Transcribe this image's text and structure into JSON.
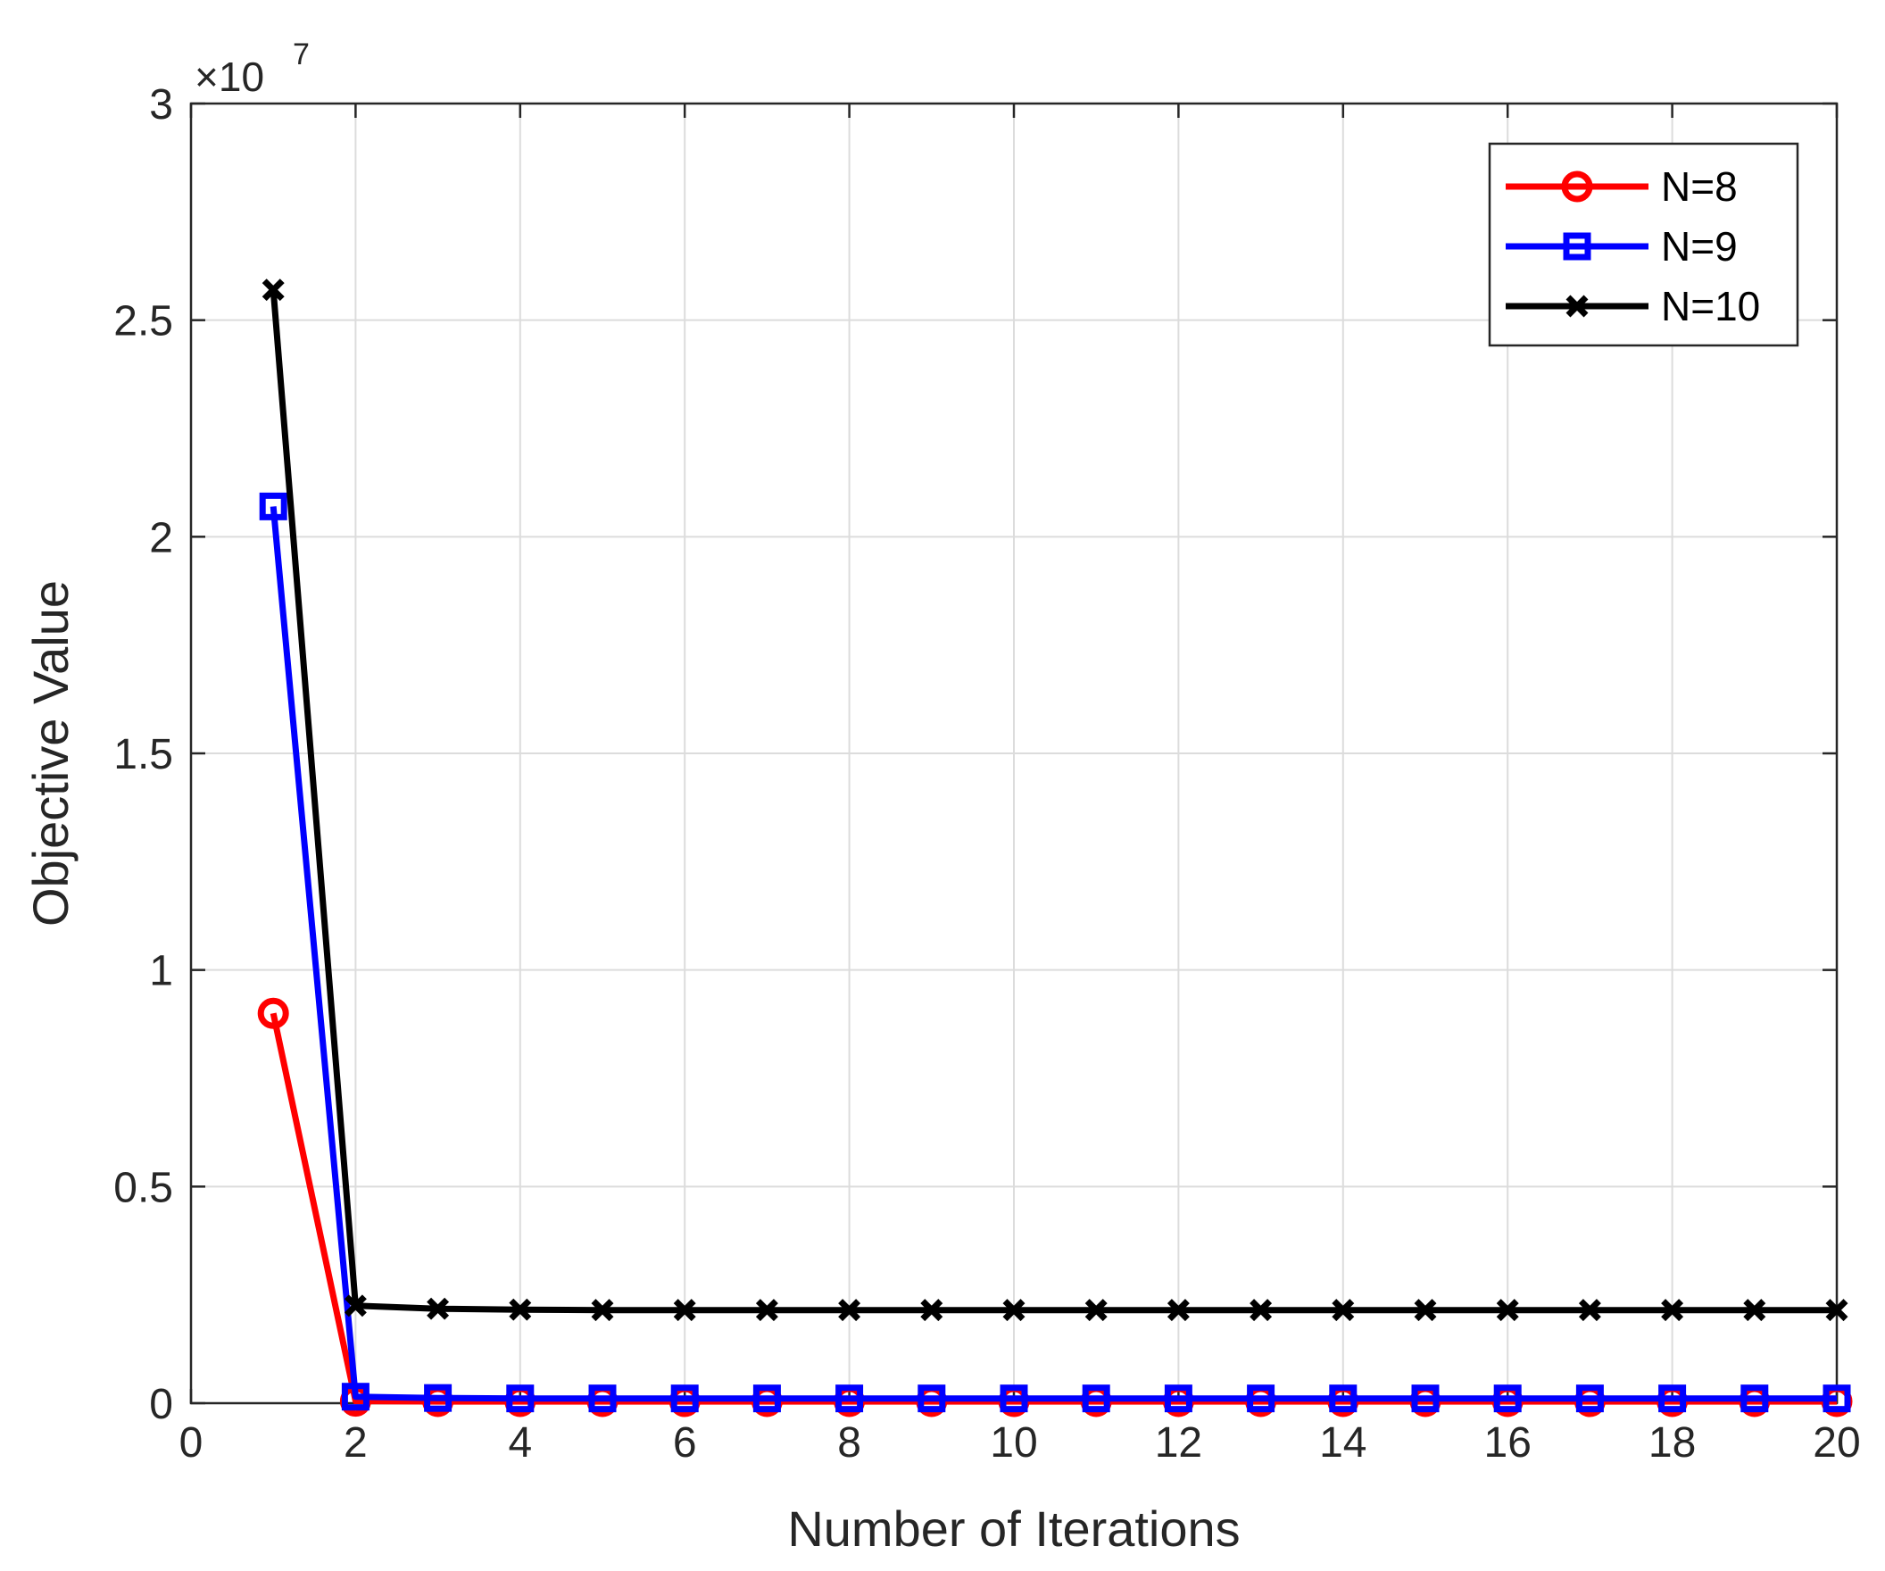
{
  "chart_data": {
    "type": "line",
    "title": "",
    "xlabel": "Number of Iterations",
    "ylabel": "Objective Value",
    "xlim": [
      0,
      20
    ],
    "ylim": [
      0,
      30000000
    ],
    "xticks": [
      0,
      2,
      4,
      6,
      8,
      10,
      12,
      14,
      16,
      18,
      20
    ],
    "xtick_labels": [
      "0",
      "2",
      "4",
      "6",
      "8",
      "10",
      "12",
      "14",
      "16",
      "18",
      "20"
    ],
    "yticks": [
      0,
      5000000,
      10000000,
      15000000,
      20000000,
      25000000,
      30000000
    ],
    "ytick_labels": [
      "0",
      "0.5",
      "1",
      "1.5",
      "2",
      "2.5",
      "3"
    ],
    "y_exponent": {
      "base": "×10",
      "power": "7"
    },
    "grid": true,
    "legend_position": "top-right",
    "x": [
      1,
      2,
      3,
      4,
      5,
      6,
      7,
      8,
      9,
      10,
      11,
      12,
      13,
      14,
      15,
      16,
      17,
      18,
      19,
      20
    ],
    "series": [
      {
        "name": "N=8",
        "color": "#ff0000",
        "marker": "circle",
        "values": [
          9000000,
          50000,
          40000,
          40000,
          40000,
          40000,
          40000,
          40000,
          40000,
          40000,
          40000,
          40000,
          40000,
          40000,
          40000,
          40000,
          40000,
          40000,
          40000,
          40000
        ]
      },
      {
        "name": "N=9",
        "color": "#0000ff",
        "marker": "square",
        "values": [
          20700000,
          150000,
          120000,
          110000,
          110000,
          110000,
          110000,
          110000,
          110000,
          110000,
          110000,
          110000,
          110000,
          110000,
          110000,
          110000,
          110000,
          110000,
          110000,
          110000
        ]
      },
      {
        "name": "N=10",
        "color": "#000000",
        "marker": "x",
        "values": [
          25700000,
          2250000,
          2180000,
          2160000,
          2150000,
          2150000,
          2150000,
          2150000,
          2150000,
          2150000,
          2150000,
          2150000,
          2150000,
          2150000,
          2150000,
          2150000,
          2150000,
          2150000,
          2150000,
          2150000
        ]
      }
    ]
  }
}
